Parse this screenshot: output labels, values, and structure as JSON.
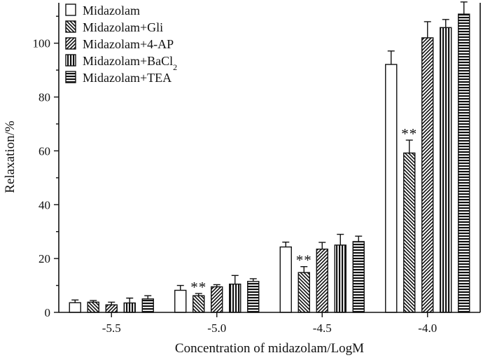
{
  "chart_data": {
    "type": "bar",
    "title": "",
    "xlabel": "Concentration of midazolam/LogM",
    "ylabel": "Relaxation/%",
    "categories": [
      "-5.5",
      "-5.0",
      "-4.5",
      "-4.0"
    ],
    "ylim": [
      0,
      115
    ],
    "yticks": [
      0,
      20,
      40,
      60,
      80,
      100
    ],
    "grid": false,
    "legend_position": "top-left",
    "series": [
      {
        "name": "Midazolam",
        "name_sub": "",
        "pattern": "none",
        "values": [
          3.6,
          8.2,
          24.3,
          92.1
        ],
        "errors": [
          1.0,
          1.8,
          1.8,
          5.0
        ]
      },
      {
        "name": "Midazolam+Gli",
        "name_sub": "",
        "pattern": "diag-back",
        "values": [
          3.8,
          6.2,
          14.8,
          59.2
        ],
        "errors": [
          0.6,
          0.8,
          2.2,
          4.8
        ]
      },
      {
        "name": "Midazolam+4-AP",
        "name_sub": "",
        "pattern": "diag-fwd",
        "values": [
          2.8,
          9.5,
          23.5,
          102.0
        ],
        "errors": [
          1.0,
          0.8,
          2.5,
          6.0
        ]
      },
      {
        "name": "Midazolam+BaCl",
        "name_sub": "2",
        "pattern": "vertical",
        "values": [
          3.5,
          10.5,
          25.0,
          105.8
        ],
        "errors": [
          1.8,
          3.2,
          4.0,
          3.0
        ]
      },
      {
        "name": "Midazolam+TEA",
        "name_sub": "",
        "pattern": "horizontal",
        "values": [
          5.0,
          11.5,
          26.3,
          110.8
        ],
        "errors": [
          1.2,
          1.0,
          2.0,
          4.5
        ]
      }
    ],
    "annotations": [
      {
        "text": "**",
        "category": "-5.0",
        "series": "Midazolam+Gli"
      },
      {
        "text": "**",
        "category": "-4.5",
        "series": "Midazolam+Gli"
      },
      {
        "text": "**",
        "category": "-4.0",
        "series": "Midazolam+Gli"
      }
    ]
  }
}
